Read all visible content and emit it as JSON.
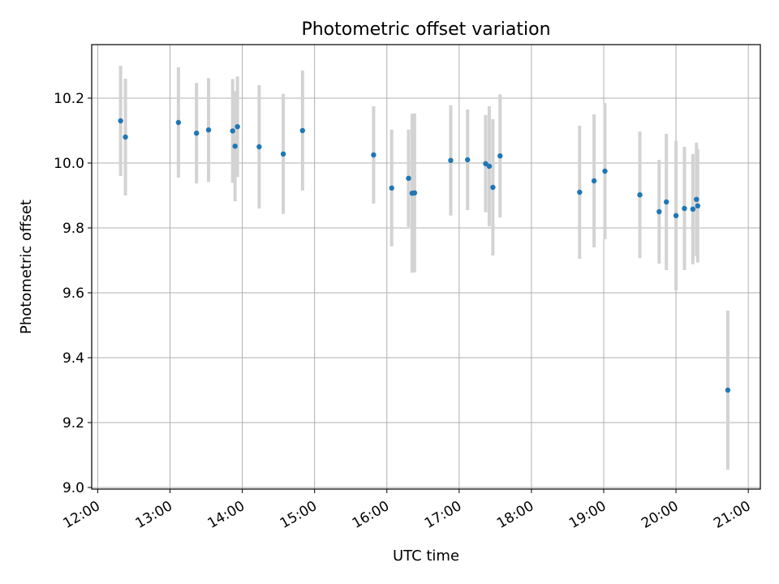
{
  "chart_data": {
    "type": "scatter",
    "title": "Photometric offset variation",
    "xlabel": "UTC time",
    "ylabel": "Photometric offset",
    "x_ticks": [
      "12:00",
      "13:00",
      "14:00",
      "15:00",
      "16:00",
      "17:00",
      "18:00",
      "19:00",
      "20:00",
      "21:00"
    ],
    "y_ticks": [
      "9.0",
      "9.2",
      "9.4",
      "9.6",
      "9.8",
      "10.0",
      "10.2"
    ],
    "xlim": [
      "11:55",
      "21:10"
    ],
    "ylim": [
      8.995,
      10.365
    ],
    "grid": true,
    "colors": {
      "point": "#1f77b4",
      "errorbar": "#d3d3d3",
      "grid": "#b0b0b0"
    },
    "points": [
      {
        "x": "12:19",
        "y": 10.13,
        "yerr": 0.17
      },
      {
        "x": "12:23",
        "y": 10.08,
        "yerr": 0.18
      },
      {
        "x": "13:07",
        "y": 10.125,
        "yerr": 0.17
      },
      {
        "x": "13:22",
        "y": 10.092,
        "yerr": 0.155
      },
      {
        "x": "13:32",
        "y": 10.102,
        "yerr": 0.16
      },
      {
        "x": "13:52",
        "y": 10.099,
        "yerr": 0.16
      },
      {
        "x": "13:54",
        "y": 10.052,
        "yerr": 0.17
      },
      {
        "x": "13:56",
        "y": 10.112,
        "yerr": 0.155
      },
      {
        "x": "14:14",
        "y": 10.05,
        "yerr": 0.19
      },
      {
        "x": "14:34",
        "y": 10.028,
        "yerr": 0.185
      },
      {
        "x": "14:50",
        "y": 10.1,
        "yerr": 0.185
      },
      {
        "x": "15:49",
        "y": 10.025,
        "yerr": 0.15
      },
      {
        "x": "16:04",
        "y": 9.923,
        "yerr": 0.18
      },
      {
        "x": "16:18",
        "y": 9.953,
        "yerr": 0.15
      },
      {
        "x": "16:21",
        "y": 9.907,
        "yerr": 0.245
      },
      {
        "x": "16:23",
        "y": 9.908,
        "yerr": 0.245
      },
      {
        "x": "16:53",
        "y": 10.008,
        "yerr": 0.17
      },
      {
        "x": "17:07",
        "y": 10.01,
        "yerr": 0.155
      },
      {
        "x": "17:22",
        "y": 9.998,
        "yerr": 0.15
      },
      {
        "x": "17:25",
        "y": 9.99,
        "yerr": 0.185
      },
      {
        "x": "17:28",
        "y": 9.925,
        "yerr": 0.21
      },
      {
        "x": "17:34",
        "y": 10.022,
        "yerr": 0.19
      },
      {
        "x": "18:40",
        "y": 9.91,
        "yerr": 0.205
      },
      {
        "x": "18:52",
        "y": 9.945,
        "yerr": 0.205
      },
      {
        "x": "19:01",
        "y": 9.975,
        "yerr": 0.21
      },
      {
        "x": "19:30",
        "y": 9.902,
        "yerr": 0.195
      },
      {
        "x": "19:46",
        "y": 9.85,
        "yerr": 0.16
      },
      {
        "x": "19:52",
        "y": 9.88,
        "yerr": 0.21
      },
      {
        "x": "20:00",
        "y": 9.838,
        "yerr": 0.23
      },
      {
        "x": "20:07",
        "y": 9.86,
        "yerr": 0.19
      },
      {
        "x": "20:14",
        "y": 9.858,
        "yerr": 0.17
      },
      {
        "x": "20:17",
        "y": 9.888,
        "yerr": 0.175
      },
      {
        "x": "20:18",
        "y": 9.868,
        "yerr": 0.175
      },
      {
        "x": "20:43",
        "y": 9.3,
        "yerr": 0.245
      }
    ]
  }
}
